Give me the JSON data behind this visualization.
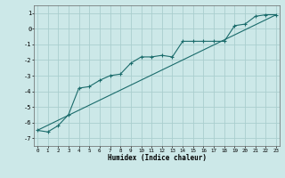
{
  "xlabel": "Humidex (Indice chaleur)",
  "ylabel": "",
  "bg_color": "#cce8e8",
  "grid_color": "#aacece",
  "line_color": "#1a6b6b",
  "x_ticks": [
    0,
    1,
    2,
    3,
    4,
    5,
    6,
    7,
    8,
    9,
    10,
    11,
    12,
    13,
    14,
    15,
    16,
    17,
    18,
    19,
    20,
    21,
    22,
    23
  ],
  "y_ticks": [
    -7,
    -6,
    -5,
    -4,
    -3,
    -2,
    -1,
    0,
    1
  ],
  "ylim": [
    -7.5,
    1.5
  ],
  "xlim": [
    -0.3,
    23.3
  ],
  "line1_x": [
    0,
    1,
    2,
    3,
    4,
    5,
    6,
    7,
    8,
    9,
    10,
    11,
    12,
    13,
    14,
    15,
    16,
    17,
    18,
    19,
    20,
    21,
    22,
    23
  ],
  "line1_y": [
    -6.5,
    -6.6,
    -6.2,
    -5.5,
    -3.8,
    -3.7,
    -3.3,
    -3.0,
    -2.9,
    -2.2,
    -1.8,
    -1.8,
    -1.7,
    -1.8,
    -0.8,
    -0.8,
    -0.8,
    -0.8,
    -0.8,
    0.2,
    0.3,
    0.8,
    0.9,
    0.9
  ],
  "line2_x": [
    0,
    23
  ],
  "line2_y": [
    -6.5,
    0.9
  ]
}
